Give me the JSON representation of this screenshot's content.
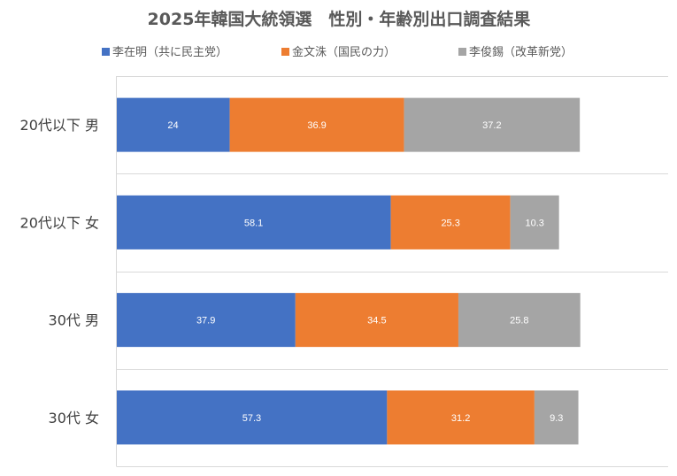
{
  "chart_data": {
    "type": "bar",
    "orientation": "horizontal",
    "stacked": true,
    "title": "2025年韓国大統領選　性別・年齢別出口調査結果",
    "categories": [
      "20代以下 男",
      "20代以下 女",
      "30代 男",
      "30代 女"
    ],
    "series": [
      {
        "name": "李在明（共に民主党）",
        "color": "#4472c4",
        "values": [
          24,
          58.1,
          37.9,
          57.3
        ]
      },
      {
        "name": "金文洙（国民の力）",
        "color": "#ed7d31",
        "values": [
          36.9,
          25.3,
          34.5,
          31.2
        ]
      },
      {
        "name": "李俊錫（改革新党）",
        "color": "#a5a5a5",
        "values": [
          37.2,
          10.3,
          25.8,
          9.3
        ]
      }
    ],
    "data_labels": [
      [
        "24",
        "36.9",
        "37.2"
      ],
      [
        "58.1",
        "25.3",
        "10.3"
      ],
      [
        "37.9",
        "34.5",
        "25.8"
      ],
      [
        "57.3",
        "31.2",
        "9.3"
      ]
    ],
    "xlim": [
      0,
      120
    ],
    "grid": true,
    "legend_position": "top"
  }
}
